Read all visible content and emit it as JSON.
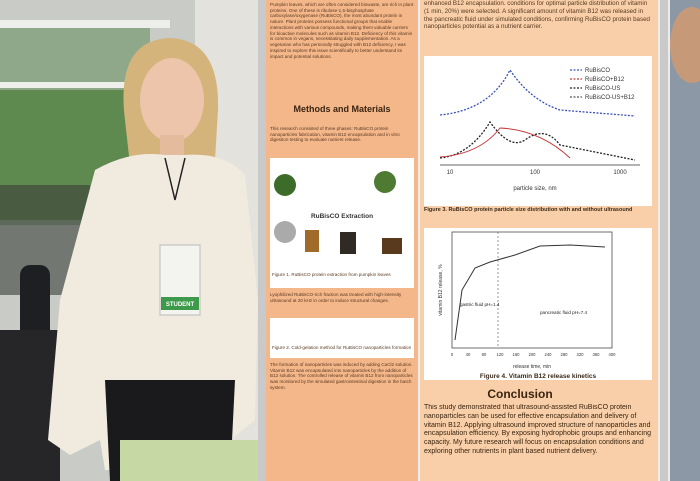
{
  "badge": "STUDENT",
  "poster": {
    "intro_text": "Pumpkin leaves, which are often considered biowaste, are rich in plant proteins. One of these is ribulose-1,5-bisphosphate carboxylase/oxygenase (RuBisCO), the most abundant protein in nature. Plant proteins possess functional groups that enable interactions with various compounds, making them valuable carriers for bioactive molecules such as vitamin B12. Deficiency of this vitamin is common in vegans, necessitating daily supplementation. As a vegetarian who has personally struggled with B12 deficiency, I was inspired to explore this issue scientifically to better understand its impact and potential solutions.",
    "methods_heading": "Methods and Materials",
    "methods_text": "This research consisted of three phases: RuBisCO protein nanoparticles fabrication, vitamin B12 encapsulation and in vitro digestion testing to evaluate nutrient release.",
    "extraction_label": "RuBisCO Extraction",
    "figure1_caption": "Figure 1. RuBisCO protein extraction from pumpkin leaves",
    "ultrasound_text": "Lyophilized RuBisCO-rich fraction was treated with high-intensity ultrasound at 20 kHz in order to induce structural changes.",
    "figure2_caption": "Figure 2. Cold-gelation method for RuBisCO nanoparticles formation",
    "formation_text": "The formation of nanoparticles was induced by adding CaCl2 solution. Vitamin B12 was encapsulated into nanoparticles by the addition of B12 solution. The controlled release of vitamin B12 from nanoparticles was monitored by the simulated gastrointestinal digestion in the batch system.",
    "results_text": "enhanced B12 encapsulation. conditions for optimal particle distribution of vitamin (1 min, 20%) were selected. A significant amount of vitamin B12 was released in the pancreatic fluid under simulated conditions, confirming RuBisCO protein based nanoparticles potential as a nutrient carrier.",
    "figure3": {
      "legend": [
        "RuBisCO",
        "RuBisCO+B12",
        "RuBisCO-US",
        "RuBisCO-US+B12"
      ],
      "x_label": "particle size, nm",
      "x_ticks": [
        "10",
        "100",
        "1000"
      ],
      "caption": "Figure 3. RuBisCO protein particle size distribution with and without ultrasound"
    },
    "figure4": {
      "y_label": "vitamin B12 release, %",
      "x_label": "release time, min",
      "x_ticks": [
        "0",
        "40",
        "80",
        "120",
        "160",
        "200",
        "240",
        "280",
        "320",
        "360",
        "400"
      ],
      "gastric": "gastric fluid pH=1.4",
      "pancreatic": "pancreatic fluid pH=7.4",
      "caption": "Figure 4. Vitamin B12 release kinetics"
    },
    "conclusion_heading": "Conclusion",
    "conclusion_text": "This study demonstrated that ultrasound-assisted RuBisCO protein nanoparticles can be used for effective encapsulation and delivery of vitamin B12. Applying ultrasound improved structure of nanoparticles and encapsulation efficiency. By exposing hydrophobic groups and enhancing capacity. My future research will focus on encapsulation conditions and exploring other nutrients in plant based nutrient delivery."
  }
}
